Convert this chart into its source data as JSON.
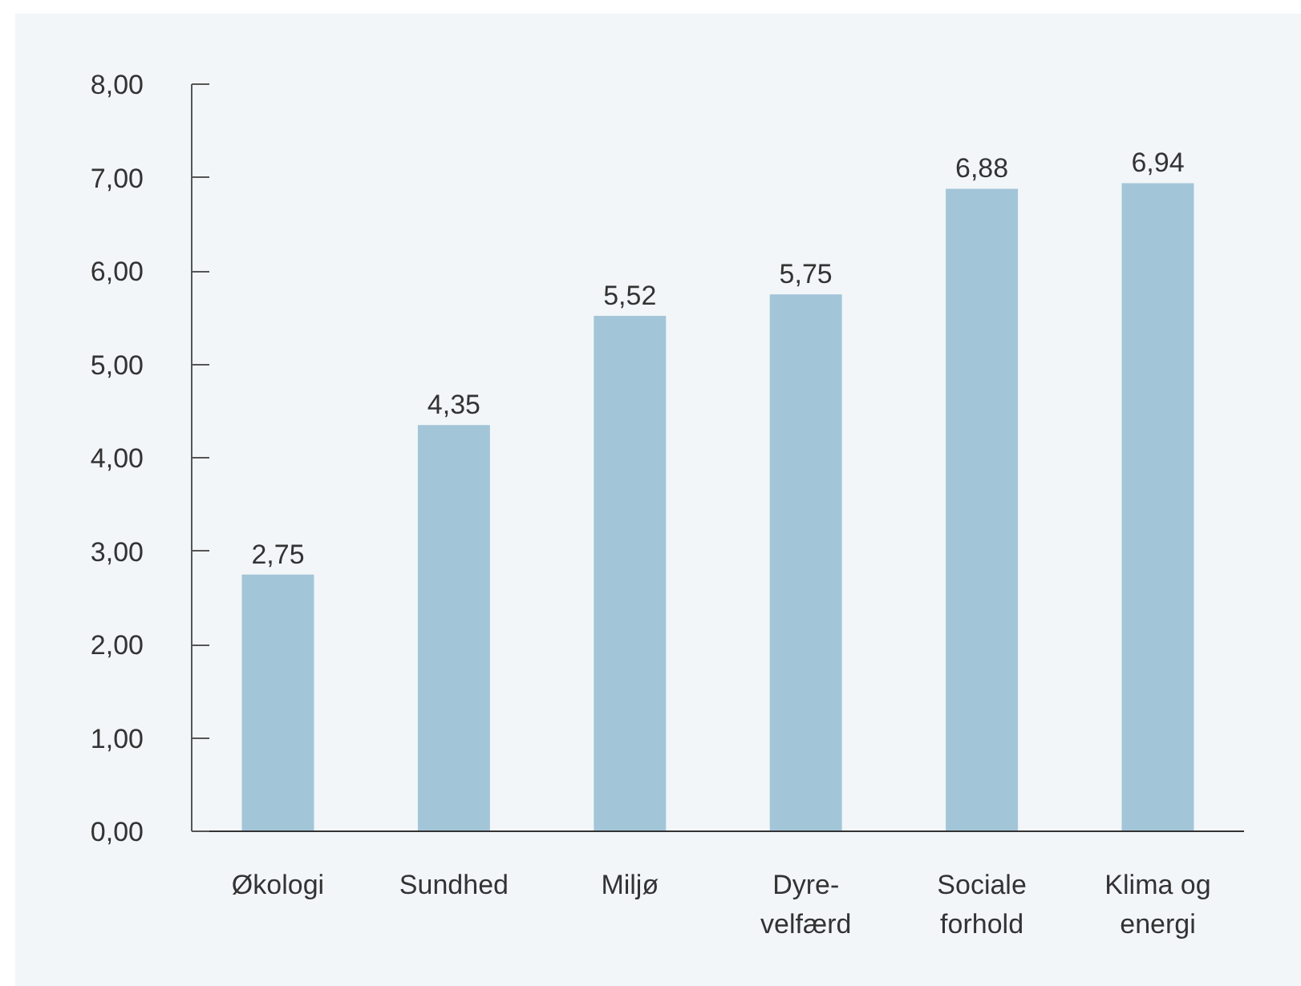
{
  "chart_data": {
    "type": "bar",
    "categories": [
      "Økologi",
      "Sundhed",
      "Miljø",
      "Dyre-\nvelfærd",
      "Sociale\nforhold",
      "Klima og\nenergi"
    ],
    "values": [
      2.75,
      4.35,
      5.52,
      5.75,
      6.88,
      6.94
    ],
    "value_labels": [
      "2,75",
      "4,35",
      "5,52",
      "5,75",
      "6,88",
      "6,94"
    ],
    "color": "#a3c5d8",
    "ylim": [
      0,
      8
    ],
    "yticks": [
      {
        "value": 0,
        "label": "0,00"
      },
      {
        "value": 1,
        "label": "1,00"
      },
      {
        "value": 2,
        "label": "2,00"
      },
      {
        "value": 3,
        "label": "3,00"
      },
      {
        "value": 4,
        "label": "4,00"
      },
      {
        "value": 5,
        "label": "5,00"
      },
      {
        "value": 6,
        "label": "6,00"
      },
      {
        "value": 7,
        "label": "7,00"
      },
      {
        "value": 8,
        "label": "8,00"
      }
    ]
  }
}
